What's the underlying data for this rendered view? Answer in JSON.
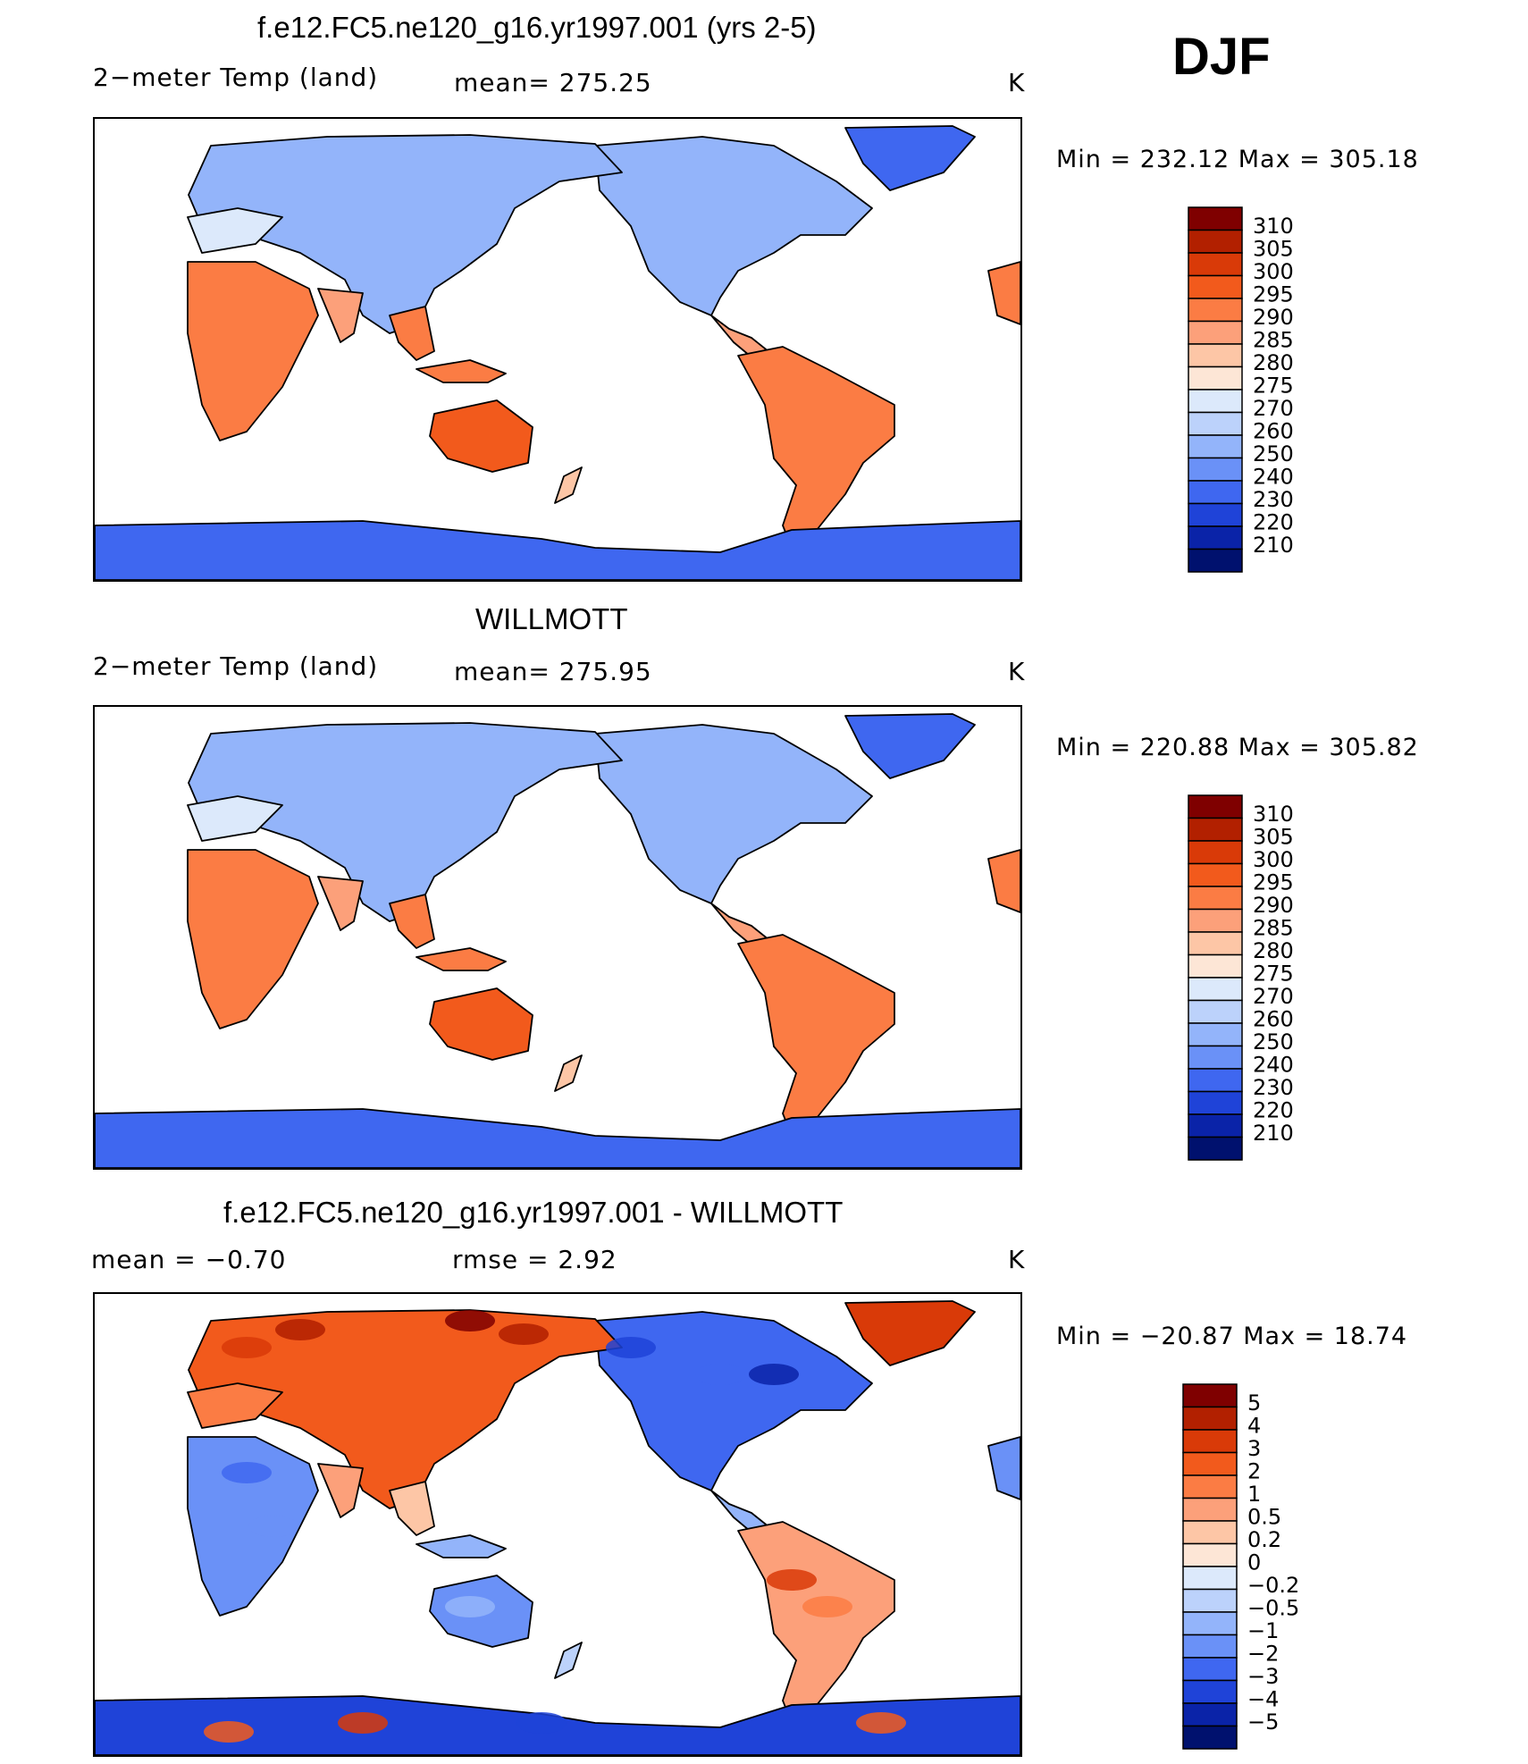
{
  "season": "DJF",
  "units": "K",
  "panels": [
    {
      "title": "f.e12.FC5.ne120_g16.yr1997.001 (yrs 2-5)",
      "variable": "2−meter Temp (land)",
      "stat_text": "mean=  275.25",
      "units": "K",
      "minmax": "Min  =  232.12  Max  =  305.18",
      "legend": [
        "310",
        "305",
        "300",
        "295",
        "290",
        "285",
        "280",
        "275",
        "270",
        "260",
        "250",
        "240",
        "230",
        "220",
        "210"
      ]
    },
    {
      "title": "WILLMOTT",
      "variable": "2−meter Temp (land)",
      "stat_text": "mean=  275.95",
      "units": "K",
      "minmax": "Min  =  220.88  Max  =  305.82",
      "legend": [
        "310",
        "305",
        "300",
        "295",
        "290",
        "285",
        "280",
        "275",
        "270",
        "260",
        "250",
        "240",
        "230",
        "220",
        "210"
      ]
    },
    {
      "title": "f.e12.FC5.ne120_g16.yr1997.001 - WILLMOTT",
      "variable": "mean  =    −0.70",
      "stat_text": "rmse  =     2.92",
      "units": "K",
      "minmax": "Min  =  −20.87  Max  =    18.74",
      "legend": [
        "5",
        "4",
        "3",
        "2",
        "1",
        "0.5",
        "0.2",
        "0",
        "−0.2",
        "−0.5",
        "−1",
        "−2",
        "−3",
        "−4",
        "−5"
      ]
    }
  ],
  "colors": {
    "abs_scale": [
      "#7f0000",
      "#b22000",
      "#d93a08",
      "#f25a1c",
      "#fb7c44",
      "#fca07a",
      "#fdc6a6",
      "#fde6d6",
      "#dce9fb",
      "#bcd2fb",
      "#93b4fa",
      "#6a91f7",
      "#3f67f0",
      "#1f43d8",
      "#0a23a8",
      "#00116e"
    ],
    "diff_scale": [
      "#7f0000",
      "#b22000",
      "#d93a08",
      "#f25a1c",
      "#fb7c44",
      "#fca07a",
      "#fdc6a6",
      "#fde6d6",
      "#dce9fb",
      "#bcd2fb",
      "#93b4fa",
      "#6a91f7",
      "#3f67f0",
      "#1f43d8",
      "#0a23a8",
      "#00116e"
    ]
  }
}
